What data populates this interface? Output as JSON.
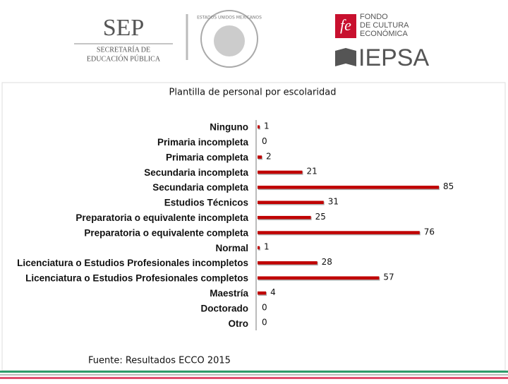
{
  "header": {
    "sep": "SEP",
    "sep_line1": "SECRETARÍA DE",
    "sep_line2": "EDUCACIÓN PÚBLICA",
    "seal": "ESTADOS UNIDOS MEXICANOS",
    "fce_line1": "FONDO",
    "fce_line2": "DE CULTURA",
    "fce_line3": "ECONÓMICA",
    "iepsa": "IEPSA"
  },
  "chart_data": {
    "type": "bar",
    "orientation": "horizontal",
    "title": "Plantilla de personal por escolaridad",
    "categories": [
      "Ninguno",
      "Primaria incompleta",
      "Primaria completa",
      "Secundaria incompleta",
      "Secundaria completa",
      "Estudios Técnicos",
      "Preparatoria o equivalente incompleta",
      "Preparatoria o equivalente completa",
      "Normal",
      "Licenciatura o Estudios Profesionales incompletos",
      "Licenciatura o Estudios Profesionales completos",
      "Maestría",
      "Doctorado",
      "Otro"
    ],
    "values": [
      1,
      0,
      2,
      21,
      85,
      31,
      25,
      76,
      1,
      28,
      57,
      4,
      0,
      0
    ],
    "color": "#c00000",
    "source": "Fuente: Resultados ECCO 2015"
  }
}
